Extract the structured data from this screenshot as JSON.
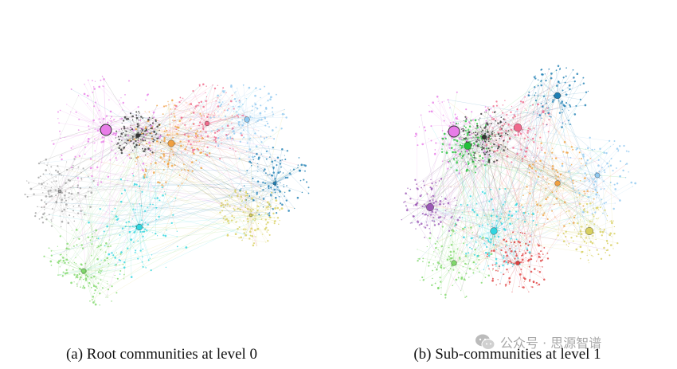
{
  "figures": [
    {
      "id": "a",
      "caption": "(a) Root communities at level 0",
      "palette": [
        "#e87de8",
        "#2fd6e0",
        "#f0a040",
        "#7fd86a",
        "#f06a8c",
        "#8ec8f0",
        "#333333",
        "#1f7fb4",
        "#a0a0a0",
        "#d8d060"
      ]
    },
    {
      "id": "b",
      "caption": "(b) Sub-communities at level 1",
      "palette": [
        "#e87de8",
        "#2fd6e0",
        "#f0a040",
        "#7fd86a",
        "#f06a8c",
        "#8ec8f0",
        "#333333",
        "#1f7fb4",
        "#22c03a",
        "#e04040",
        "#d8d060",
        "#9b59b6"
      ]
    }
  ],
  "watermark": {
    "text": "公众号 · 思源智谱",
    "icon": "wechat-icon"
  }
}
